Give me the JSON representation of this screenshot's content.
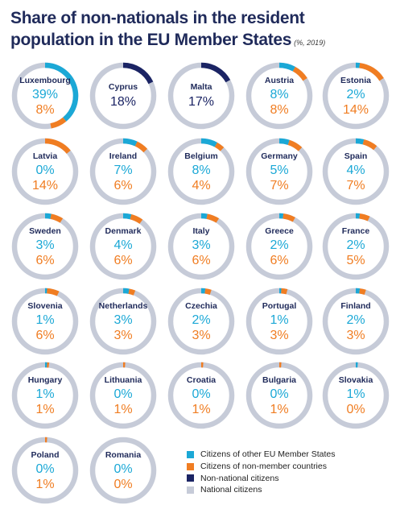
{
  "title": "Share of non-nationals in the resident population in the EU Member States",
  "subtitle": "(%, 2019)",
  "colors": {
    "eu": "#1ba8d6",
    "nonmember": "#f07d22",
    "nonnational": "#1b2464",
    "national": "#c6cbd8",
    "text_country": "#1f2a5a"
  },
  "legend": [
    {
      "label": "Citizens of other EU Member States",
      "color": "#1ba8d6"
    },
    {
      "label": "Citizens of non-member countries",
      "color": "#f07d22"
    },
    {
      "label": "Non-national citizens",
      "color": "#1b2464"
    },
    {
      "label": "National citizens",
      "color": "#c6cbd8"
    }
  ],
  "chart_data": {
    "type": "donut",
    "title": "Share of non-nationals in the resident population in the EU Member States",
    "unit": "%",
    "year": 2019,
    "series_names": [
      "Citizens of other EU Member States",
      "Citizens of non-member countries",
      "Non-national citizens",
      "National citizens"
    ],
    "countries": [
      {
        "name": "Luxembourg",
        "eu": 39,
        "nonmember": 8,
        "eu_text": "39%",
        "nonmember_text": "8%"
      },
      {
        "name": "Cyprus",
        "nonnational": 18,
        "total_text": "18%"
      },
      {
        "name": "Malta",
        "nonnational": 17,
        "total_text": "17%"
      },
      {
        "name": "Austria",
        "eu": 8,
        "nonmember": 8,
        "eu_text": "8%",
        "nonmember_text": "8%"
      },
      {
        "name": "Estonia",
        "eu": 2,
        "nonmember": 14,
        "eu_text": "2%",
        "nonmember_text": "14%"
      },
      {
        "name": "Latvia",
        "eu": 0,
        "nonmember": 14,
        "eu_text": "0%",
        "nonmember_text": "14%"
      },
      {
        "name": "Ireland",
        "eu": 7,
        "nonmember": 6,
        "eu_text": "7%",
        "nonmember_text": "6%"
      },
      {
        "name": "Belgium",
        "eu": 8,
        "nonmember": 4,
        "eu_text": "8%",
        "nonmember_text": "4%"
      },
      {
        "name": "Germany",
        "eu": 5,
        "nonmember": 7,
        "eu_text": "5%",
        "nonmember_text": "7%"
      },
      {
        "name": "Spain",
        "eu": 4,
        "nonmember": 7,
        "eu_text": "4%",
        "nonmember_text": "7%"
      },
      {
        "name": "Sweden",
        "eu": 3,
        "nonmember": 6,
        "eu_text": "3%",
        "nonmember_text": "6%"
      },
      {
        "name": "Denmark",
        "eu": 4,
        "nonmember": 6,
        "eu_text": "4%",
        "nonmember_text": "6%"
      },
      {
        "name": "Italy",
        "eu": 3,
        "nonmember": 6,
        "eu_text": "3%",
        "nonmember_text": "6%"
      },
      {
        "name": "Greece",
        "eu": 2,
        "nonmember": 6,
        "eu_text": "2%",
        "nonmember_text": "6%"
      },
      {
        "name": "France",
        "eu": 2,
        "nonmember": 5,
        "eu_text": "2%",
        "nonmember_text": "5%"
      },
      {
        "name": "Slovenia",
        "eu": 1,
        "nonmember": 6,
        "eu_text": "1%",
        "nonmember_text": "6%"
      },
      {
        "name": "Netherlands",
        "eu": 3,
        "nonmember": 3,
        "eu_text": "3%",
        "nonmember_text": "3%"
      },
      {
        "name": "Czechia",
        "eu": 2,
        "nonmember": 3,
        "eu_text": "2%",
        "nonmember_text": "3%"
      },
      {
        "name": "Portugal",
        "eu": 1,
        "nonmember": 3,
        "eu_text": "1%",
        "nonmember_text": "3%"
      },
      {
        "name": "Finland",
        "eu": 2,
        "nonmember": 3,
        "eu_text": "2%",
        "nonmember_text": "3%"
      },
      {
        "name": "Hungary",
        "eu": 1,
        "nonmember": 1,
        "eu_text": "1%",
        "nonmember_text": "1%"
      },
      {
        "name": "Lithuania",
        "eu": 0,
        "nonmember": 1,
        "eu_text": "0%",
        "nonmember_text": "1%"
      },
      {
        "name": "Croatia",
        "eu": 0,
        "nonmember": 1,
        "eu_text": "0%",
        "nonmember_text": "1%"
      },
      {
        "name": "Bulgaria",
        "eu": 0,
        "nonmember": 1,
        "eu_text": "0%",
        "nonmember_text": "1%"
      },
      {
        "name": "Slovakia",
        "eu": 1,
        "nonmember": 0,
        "eu_text": "1%",
        "nonmember_text": "0%"
      },
      {
        "name": "Poland",
        "eu": 0,
        "nonmember": 1,
        "eu_text": "0%",
        "nonmember_text": "1%"
      },
      {
        "name": "Romania",
        "eu": 0,
        "nonmember": 0,
        "eu_text": "0%",
        "nonmember_text": "0%"
      }
    ]
  }
}
